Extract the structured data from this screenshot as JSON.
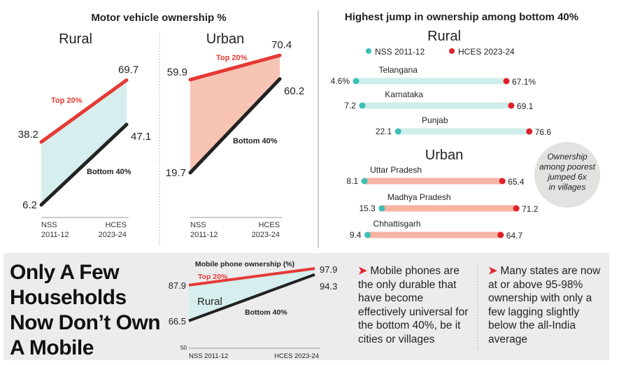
{
  "colors": {
    "top20": "#e53935",
    "bottom40": "#222222",
    "rural_fill": "#d6efee",
    "urban_fill": "#f7c4b3",
    "nss_dot": "#3bbfb4",
    "hces_dot": "#e0202a",
    "rural_bar": "#cdeeea",
    "urban_bar": "#f6b3a2",
    "panel_bg": "#ececec"
  },
  "chart_data": [
    {
      "type": "line",
      "title": "Motor vehicle ownership %",
      "panels": [
        {
          "subtitle": "Rural",
          "categories": [
            "NSS 2011-12",
            "HCES 2023-24"
          ],
          "series": [
            {
              "name": "Top 20%",
              "values": [
                38.2,
                69.7
              ]
            },
            {
              "name": "Bottom 40%",
              "values": [
                6.2,
                47.1
              ]
            }
          ],
          "labels": {
            "top_start": "38.2",
            "top_end": "69.7",
            "bottom_start": "6.2",
            "bottom_end": "47.1"
          }
        },
        {
          "subtitle": "Urban",
          "categories": [
            "NSS 2011-12",
            "HCES 2023-24"
          ],
          "series": [
            {
              "name": "Top 20%",
              "values": [
                59.9,
                70.4
              ]
            },
            {
              "name": "Bottom 40%",
              "values": [
                19.7,
                60.2
              ]
            }
          ],
          "labels": {
            "top_start": "59.9",
            "top_end": "70.4",
            "bottom_start": "19.7",
            "bottom_end": "60.2"
          }
        }
      ],
      "xtick_lines": [
        [
          "NSS",
          "2011-12"
        ],
        [
          "HCES",
          "2023-24"
        ]
      ]
    },
    {
      "type": "dumbbell",
      "title": "Highest jump in ownership among bottom 40%",
      "legend": [
        "NSS 2011-12",
        "HCES 2023-24"
      ],
      "groups": [
        {
          "name": "Rural",
          "rows": [
            {
              "state": "Telangana",
              "nss": 4.6,
              "hces": 67.1,
              "nss_label": "4.6%",
              "hces_label": "67.1%"
            },
            {
              "state": "Karnataka",
              "nss": 7.2,
              "hces": 69.1,
              "nss_label": "7.2",
              "hces_label": "69.1"
            },
            {
              "state": "Punjab",
              "nss": 22.1,
              "hces": 76.6,
              "nss_label": "22.1",
              "hces_label": "76.6"
            }
          ]
        },
        {
          "name": "Urban",
          "rows": [
            {
              "state": "Uttar Pradesh",
              "nss": 8.1,
              "hces": 65.4,
              "nss_label": "8.1",
              "hces_label": "65.4"
            },
            {
              "state": "Madhya Pradesh",
              "nss": 15.3,
              "hces": 71.2,
              "nss_label": "15.3",
              "hces_label": "71.2"
            },
            {
              "state": "Chhattisgarh",
              "nss": 9.4,
              "hces": 64.7,
              "nss_label": "9.4",
              "hces_label": "64.7"
            }
          ]
        }
      ],
      "callout": [
        "Ownership",
        "among poorest",
        "jumped 6x",
        "in villages"
      ]
    },
    {
      "type": "line",
      "title": "Mobile phone ownership (%)",
      "subtitle": "Rural",
      "categories": [
        "NSS 2011-12",
        "HCES 2023-24"
      ],
      "series": [
        {
          "name": "Top 20%",
          "values": [
            87.9,
            97.9
          ]
        },
        {
          "name": "Bottom 40%",
          "values": [
            66.5,
            94.3
          ]
        }
      ],
      "labels": {
        "top_start": "87.9",
        "top_end": "97.9",
        "bottom_start": "66.5",
        "bottom_end": "94.3"
      },
      "ymin_label": "50",
      "ylim": [
        50,
        100
      ]
    }
  ],
  "bottom": {
    "headline": [
      "Only A Few",
      "Households",
      "Now Don’t Own",
      "A Mobile"
    ],
    "note1": "Mobile phones are the only durable that have become effectively universal for the bottom 40%, be it cities or villages",
    "note2": "Many states are now at or above 95-98% ownership with only a few lagging slightly below the all-India average",
    "arrow": "➤"
  }
}
